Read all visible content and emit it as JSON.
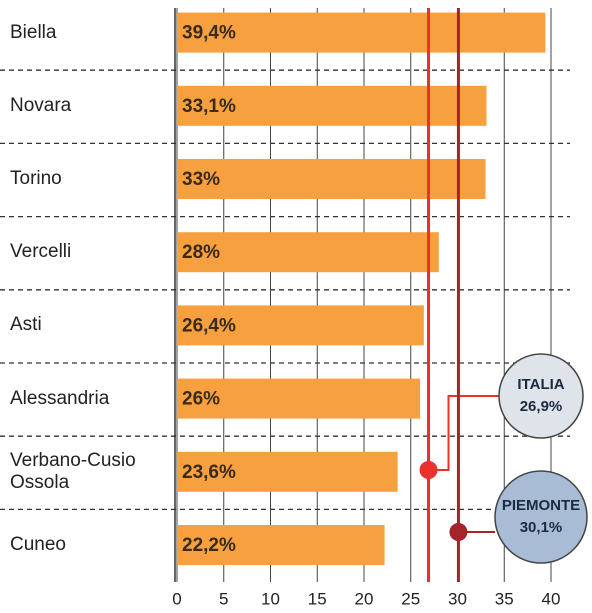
{
  "chart_data": {
    "type": "hbar",
    "categories": [
      "Biella",
      "Novara",
      "Torino",
      "Vercelli",
      "Asti",
      "Alessandria",
      "Verbano-Cusio Ossola",
      "Cuneo"
    ],
    "values": [
      39.4,
      33.1,
      33,
      28,
      26.4,
      26,
      23.6,
      22.2
    ],
    "value_labels": [
      "39,4%",
      "33,1%",
      "33%",
      "28%",
      "26,4%",
      "26%",
      "23,6%",
      "22,2%"
    ],
    "color": "#f7a03f",
    "xlim": [
      0,
      40
    ],
    "xticks": [
      0,
      5,
      10,
      15,
      20,
      25,
      30,
      35,
      40
    ],
    "grid": true,
    "reference_lines": [
      {
        "name": "ITALIA",
        "value": 26.9,
        "label": "26,9%",
        "color": "#e8322b",
        "badge_color": "#dfe3ea"
      },
      {
        "name": "PIEMONTE",
        "value": 30.1,
        "label": "30,1%",
        "color": "#a3242b",
        "badge_color": "#a9bcd6"
      }
    ]
  }
}
